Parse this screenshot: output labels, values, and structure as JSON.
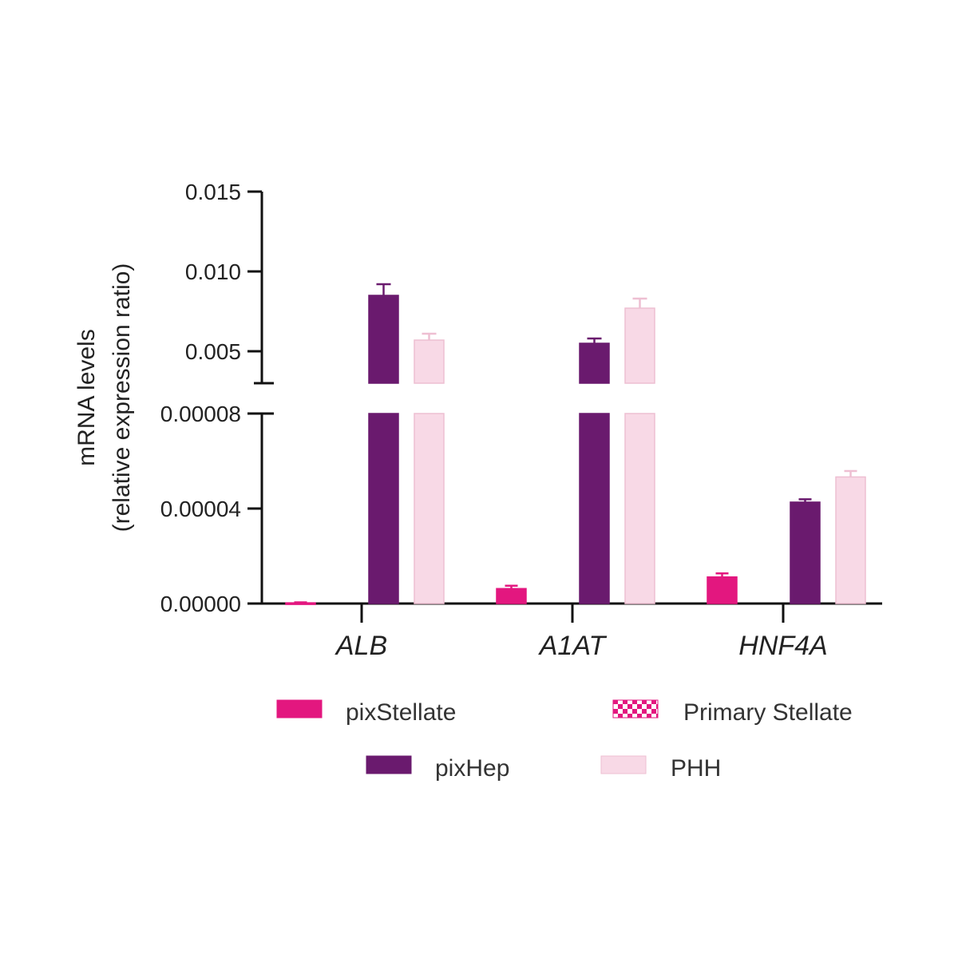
{
  "chart_data": {
    "type": "bar",
    "ylabel": [
      "mRNA levels",
      "(relative expression ratio)"
    ],
    "y_axis_break": true,
    "ylim_lower": [
      0,
      8e-05
    ],
    "ylim_upper": [
      0.003,
      0.015
    ],
    "yticks_lower": [
      "0.00000",
      "0.00004",
      "0.00008"
    ],
    "yticks_upper": [
      "0.005",
      "0.010",
      "0.015"
    ],
    "categories": [
      "ALB",
      "A1AT",
      "HNF4A"
    ],
    "series": [
      {
        "name": "pixStellate",
        "color": "#e3177f",
        "pattern": "solid",
        "values": [
          3e-07,
          6.3e-06,
          1.12e-05
        ],
        "errors": [
          2e-07,
          1.2e-06,
          1.5e-06
        ]
      },
      {
        "name": "Primary Stellate",
        "color": "#e3177f",
        "pattern": "checker",
        "values": [
          0,
          0,
          0
        ],
        "errors": [
          0,
          0,
          0
        ]
      },
      {
        "name": "pixHep",
        "color": "#6a1a6e",
        "pattern": "solid",
        "values": [
          0.0085,
          0.0055,
          4.27e-05
        ],
        "errors": [
          0.0007,
          0.0003,
          1.2e-06
        ]
      },
      {
        "name": "PHH",
        "color": "#f8d9e6",
        "pattern": "solid",
        "values": [
          0.0057,
          0.0077,
          5.33e-05
        ],
        "errors": [
          0.0004,
          0.0006,
          2.5e-06
        ]
      }
    ],
    "grid": false,
    "legend_position": "bottom",
    "legend_order": [
      "pixStellate",
      "Primary Stellate",
      "pixHep",
      "PHH"
    ]
  }
}
